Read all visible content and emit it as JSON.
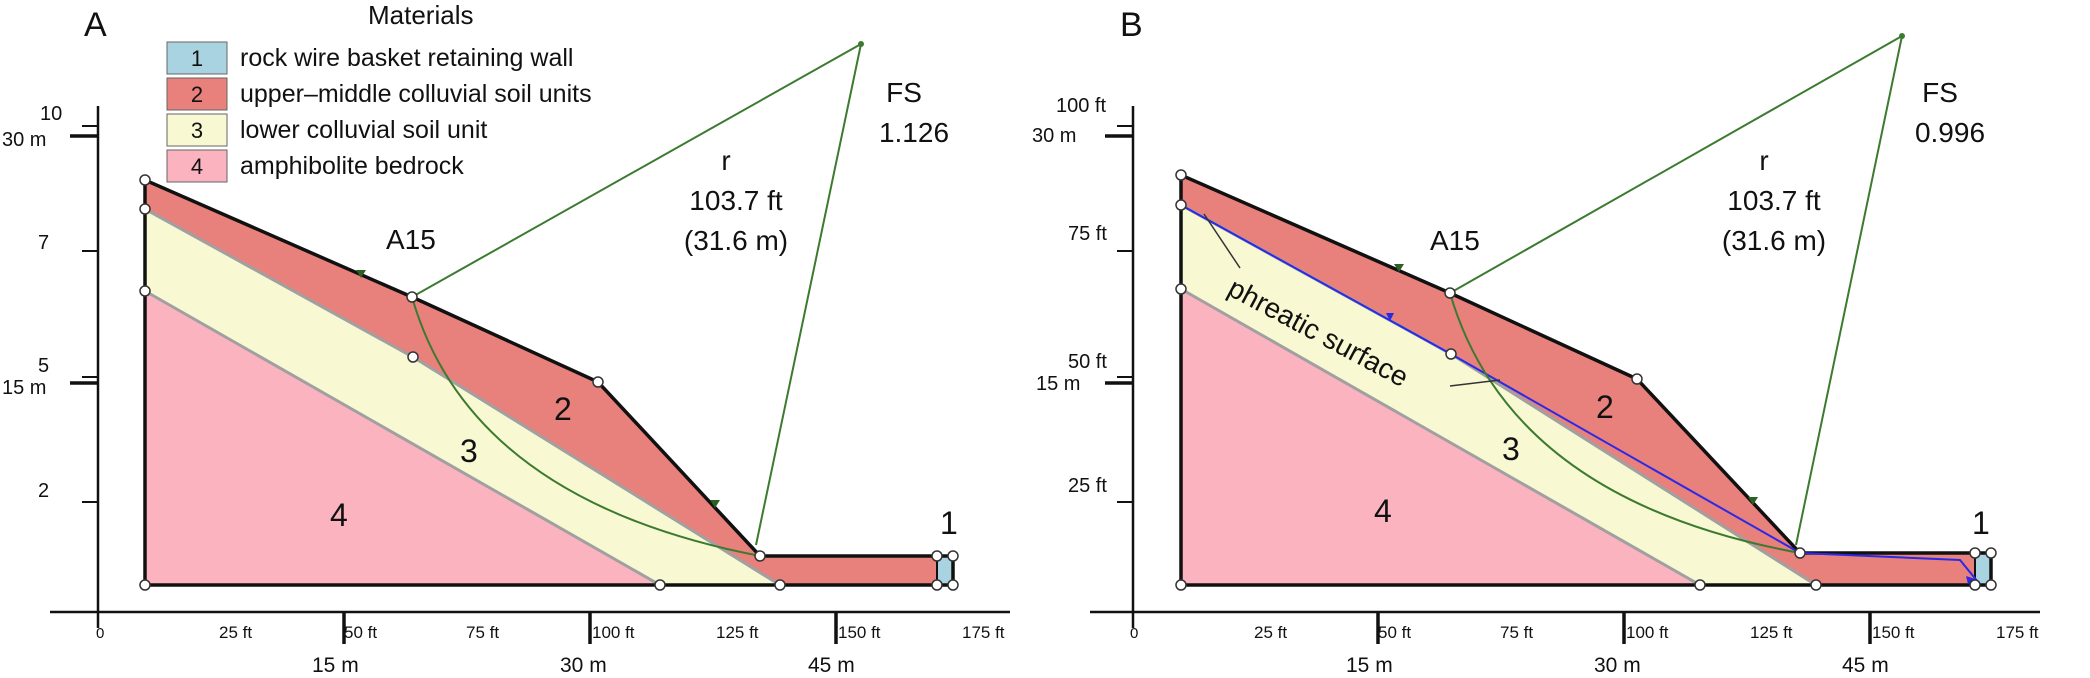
{
  "legend": {
    "title": "Materials",
    "items": [
      {
        "num": "1",
        "label": "rock wire basket retaining wall",
        "color": "#a9d3e0"
      },
      {
        "num": "2",
        "label": "upper–middle colluvial soil units",
        "color": "#e8807c"
      },
      {
        "num": "3",
        "label": "lower colluvial soil unit",
        "color": "#f8f8d2"
      },
      {
        "num": "4",
        "label": "amphibolite bedrock",
        "color": "#fbb3c0"
      }
    ]
  },
  "panels": [
    {
      "letter": "A",
      "fs_label": "FS",
      "fs_value": "1.126",
      "r_label": "r",
      "r_ft": "103.7 ft",
      "r_m": "(31.6 m)",
      "section": "A15",
      "y_ft_labels": [
        "10",
        "7",
        "5",
        "2"
      ],
      "y_m_labels": [
        "30 m",
        "15 m"
      ],
      "x_ft_labels": [
        "0",
        "25 ft",
        "50 ft",
        "75 ft",
        "100 ft",
        "125 ft",
        "150 ft",
        "175 ft"
      ],
      "x_m_labels": [
        "15 m",
        "30 m",
        "45 m"
      ],
      "region_labels": [
        "1",
        "2",
        "3",
        "4"
      ]
    },
    {
      "letter": "B",
      "fs_label": "FS",
      "fs_value": "0.996",
      "r_label": "r",
      "r_ft": "103.7 ft",
      "r_m": "(31.6 m)",
      "section": "A15",
      "phreatic_label": "phreatic surface",
      "y_ft_labels": [
        "100 ft",
        "75 ft",
        "50 ft",
        "25 ft"
      ],
      "y_m_labels": [
        "30 m",
        "15 m"
      ],
      "x_ft_labels": [
        "0",
        "25 ft",
        "50 ft",
        "75 ft",
        "100 ft",
        "125 ft",
        "150 ft",
        "175 ft"
      ],
      "x_m_labels": [
        "15 m",
        "30 m",
        "45 m"
      ],
      "region_labels": [
        "1",
        "2",
        "3",
        "4"
      ]
    }
  ],
  "colors": {
    "wall": "#a9d3e0",
    "upper_soil": "#e8807c",
    "lower_soil": "#f8f8d2",
    "bedrock": "#fbb3c0",
    "slip_circle": "#3c7a30",
    "phreatic": "#2a2ae6",
    "boundary_grey": "#a0a0a0"
  }
}
